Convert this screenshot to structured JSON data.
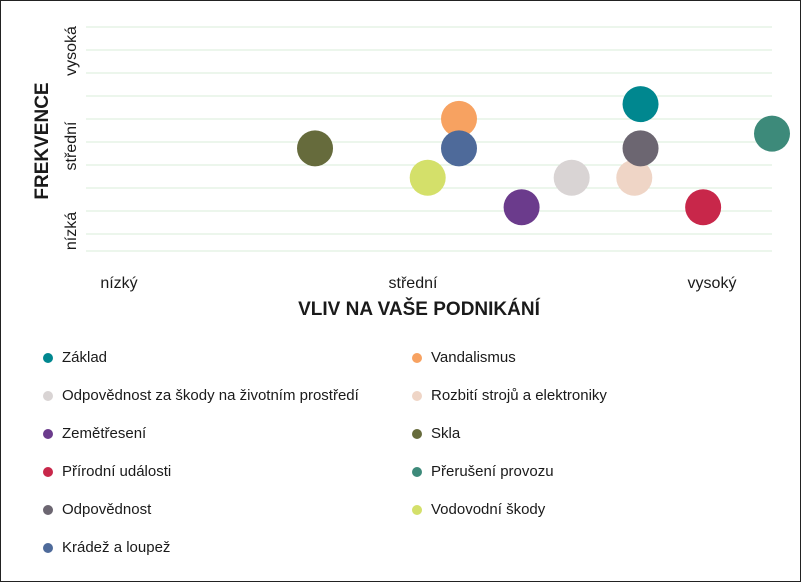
{
  "chart_data": {
    "type": "scatter",
    "xlabel": "VLIV NA VAŠE PODNIKÁNÍ",
    "ylabel": "FREKVENCE",
    "x_ticks": [
      "nízký",
      "střední",
      "vysoký"
    ],
    "y_ticks": [
      "nízká",
      "střední",
      "vysoká"
    ],
    "xlim": [
      0,
      10
    ],
    "ylim": [
      0.7,
      3.5
    ],
    "grid": "horizontal",
    "legend_placement": "bottom",
    "series": [
      {
        "name": "Základ",
        "color": "#00878f",
        "x": 7.9,
        "y": 2.45
      },
      {
        "name": "Vandalismus",
        "color": "#f7a261",
        "x": 5.0,
        "y": 2.3
      },
      {
        "name": "Odpovědnost za škody na životním prostředí",
        "color": "#d9d4d4",
        "x": 6.8,
        "y": 1.7
      },
      {
        "name": "Rozbití strojů a elektroniky",
        "color": "#efd5c6",
        "x": 7.8,
        "y": 1.7
      },
      {
        "name": "Zemětřesení",
        "color": "#6b3b8c",
        "x": 6.0,
        "y": 1.4
      },
      {
        "name": "Skla",
        "color": "#666b3c",
        "x": 2.7,
        "y": 2.0
      },
      {
        "name": "Přírodní události",
        "color": "#c8274a",
        "x": 8.9,
        "y": 1.4
      },
      {
        "name": "Přerušení provozu",
        "color": "#3d8a7a",
        "x": 10.0,
        "y": 2.15
      },
      {
        "name": "Odpovědnost",
        "color": "#6c6671",
        "x": 7.9,
        "y": 2.0
      },
      {
        "name": "Vodovodní škody",
        "color": "#d4e06a",
        "x": 4.5,
        "y": 1.7
      },
      {
        "name": "Krádež a loupež",
        "color": "#4e6a9a",
        "x": 5.0,
        "y": 2.0
      }
    ]
  }
}
